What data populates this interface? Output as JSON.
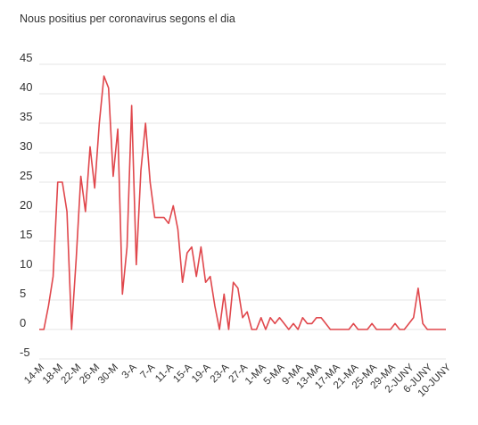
{
  "chart_data": {
    "type": "line",
    "title": "Nous positius per coronavirus segons el dia",
    "xlabel": "",
    "ylabel": "",
    "ylim": [
      -5,
      45
    ],
    "yticks": [
      45,
      40,
      35,
      30,
      25,
      20,
      15,
      10,
      5,
      0,
      -5
    ],
    "grid": true,
    "legend": "none",
    "line_color": "#e0474c",
    "grid_color": "#e6e6e6",
    "x_tick_labels": [
      "14-M",
      "18-M",
      "22-M",
      "26-M",
      "30-M",
      "3-A",
      "7-A",
      "11-A",
      "15-A",
      "19-A",
      "23-A",
      "27-A",
      "1-MA",
      "5-MA",
      "9-MA",
      "13-MA",
      "17-MA",
      "21-MA",
      "25-MA",
      "29-MA",
      "2-JUNY",
      "6-JUNY",
      "10-JUNY"
    ],
    "series": [
      {
        "values": [
          0,
          0,
          4,
          9,
          25,
          25,
          20,
          0,
          12,
          26,
          20,
          31,
          24,
          35,
          43,
          41,
          26,
          34,
          6,
          14,
          38,
          11,
          27,
          35,
          25,
          19,
          19,
          19,
          18,
          21,
          17,
          8,
          13,
          14,
          9,
          14,
          8,
          9,
          4,
          0,
          6,
          0,
          8,
          7,
          2,
          3,
          0,
          0,
          2,
          0,
          2,
          1,
          2,
          1,
          0,
          1,
          0,
          2,
          1,
          1,
          2,
          2,
          1,
          0,
          0,
          0,
          0,
          0,
          1,
          0,
          0,
          0,
          1,
          0,
          0,
          0,
          0,
          1,
          0,
          0,
          1,
          2,
          7,
          1,
          0,
          0,
          0,
          0,
          0
        ]
      }
    ]
  }
}
